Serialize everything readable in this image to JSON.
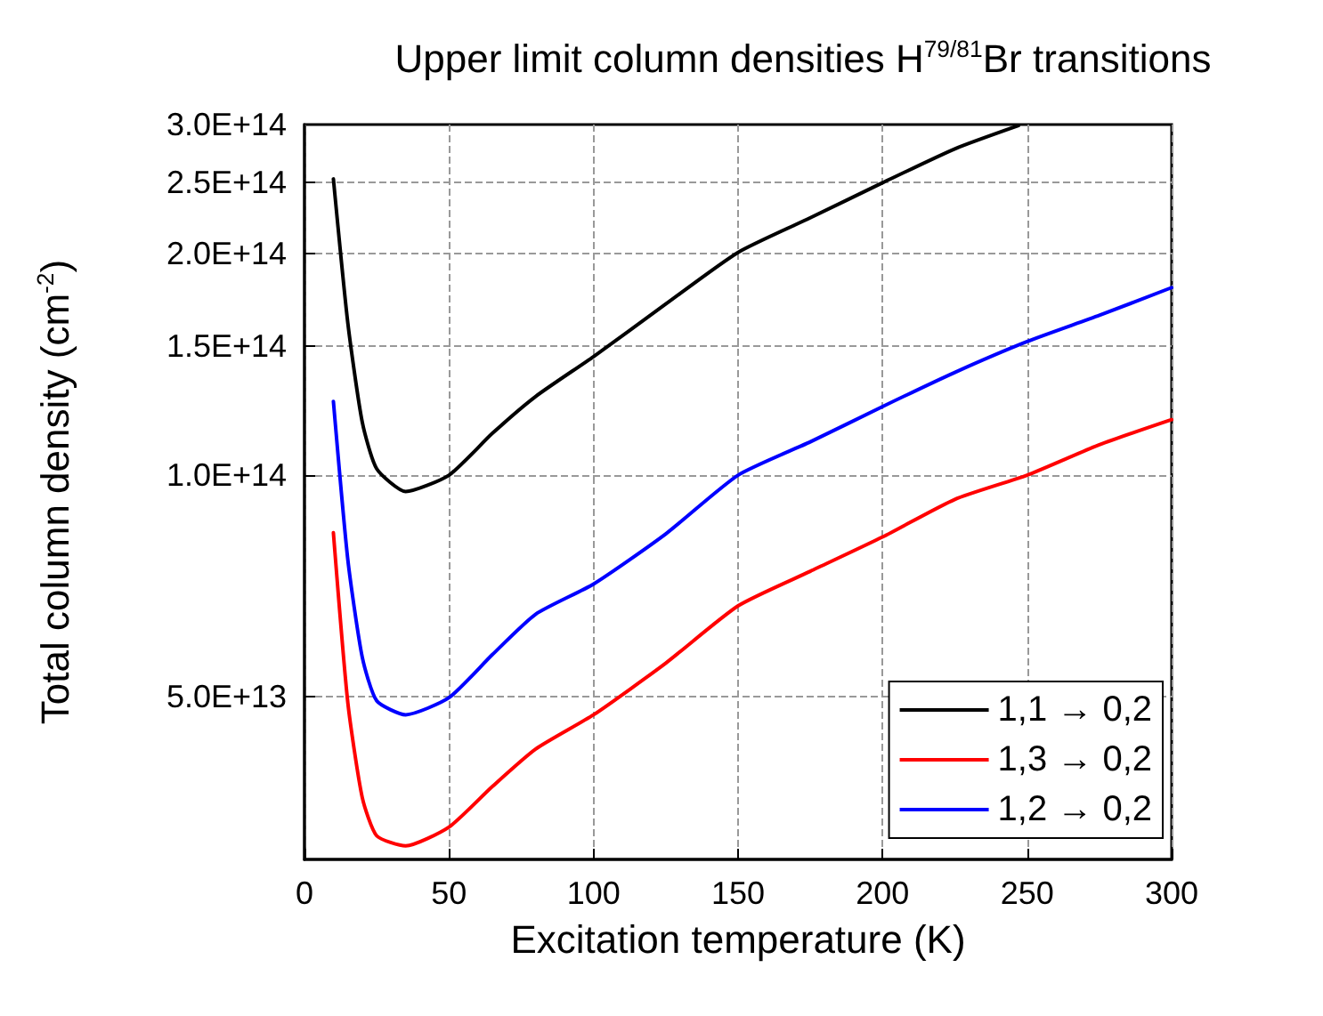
{
  "chart_data": {
    "type": "line",
    "title": "Upper limit column densities H$^{79/81}$Br transitions",
    "xlabel": "Excitation temperature (K)",
    "ylabel": "Total column density (cm$^{-2}$)",
    "log": "y",
    "grid": true,
    "legend": "bottom right",
    "marker": "none",
    "line_style": "solid",
    "xlim": [
      0,
      300
    ],
    "xticks": [
      0,
      50,
      100,
      150,
      200,
      250,
      300
    ],
    "ylim": [
      30000000000000.0,
      300000000000000.0
    ],
    "yticks": [
      {
        "value": 50000000000000.0,
        "label": "5.0E+13"
      },
      {
        "value": 100000000000000.0,
        "label": "1.0E+14"
      },
      {
        "value": 150000000000000.0,
        "label": "1.5E+14"
      },
      {
        "value": 200000000000000.0,
        "label": "2.0E+14"
      },
      {
        "value": 250000000000000.0,
        "label": "2.5E+14"
      },
      {
        "value": 300000000000000.0,
        "label": "3.0E+14"
      }
    ],
    "series": [
      {
        "name": "1,1 → 0,2",
        "color": "#000000",
        "x": [
          10,
          15,
          20,
          25,
          35,
          50,
          65,
          80,
          100,
          125,
          150,
          175,
          200,
          225,
          247
        ],
        "values": [
          253000000000000.0,
          161000000000000.0,
          118000000000000.0,
          102000000000000.0,
          95000000000000.0,
          100000000000000.0,
          114000000000000.0,
          128000000000000.0,
          145000000000000.0,
          171000000000000.0,
          201000000000000.0,
          224000000000000.0,
          250000000000000.0,
          278000000000000.0,
          299000000000000.0
        ]
      },
      {
        "name": "1,3 → 0,2",
        "color": "#ff0000",
        "x": [
          10,
          15,
          20,
          25,
          35,
          50,
          65,
          80,
          100,
          125,
          150,
          175,
          200,
          225,
          250,
          275,
          300
        ],
        "values": [
          83500000000000.0,
          49000000000000.0,
          36400000000000.0,
          32300000000000.0,
          31300000000000.0,
          33200000000000.0,
          37700000000000.0,
          42400000000000.0,
          47200000000000.0,
          55500000000000.0,
          66400000000000.0,
          74000000000000.0,
          82400000000000.0,
          92700000000000.0,
          100000000000000.0,
          110000000000000.0,
          119000000000000.0
        ]
      },
      {
        "name": "1,2 → 0,2",
        "color": "#0000ff",
        "x": [
          10,
          15,
          20,
          25,
          35,
          50,
          65,
          80,
          100,
          125,
          150,
          175,
          200,
          225,
          250,
          275,
          300
        ],
        "values": [
          126000000000000.0,
          76700000000000.0,
          56500000000000.0,
          49300000000000.0,
          47200000000000.0,
          49800000000000.0,
          57000000000000.0,
          64700000000000.0,
          71100000000000.0,
          83200000000000.0,
          100000000000000.0,
          111000000000000.0,
          124000000000000.0,
          138000000000000.0,
          152000000000000.0,
          165000000000000.0,
          180000000000000.0
        ]
      }
    ]
  }
}
